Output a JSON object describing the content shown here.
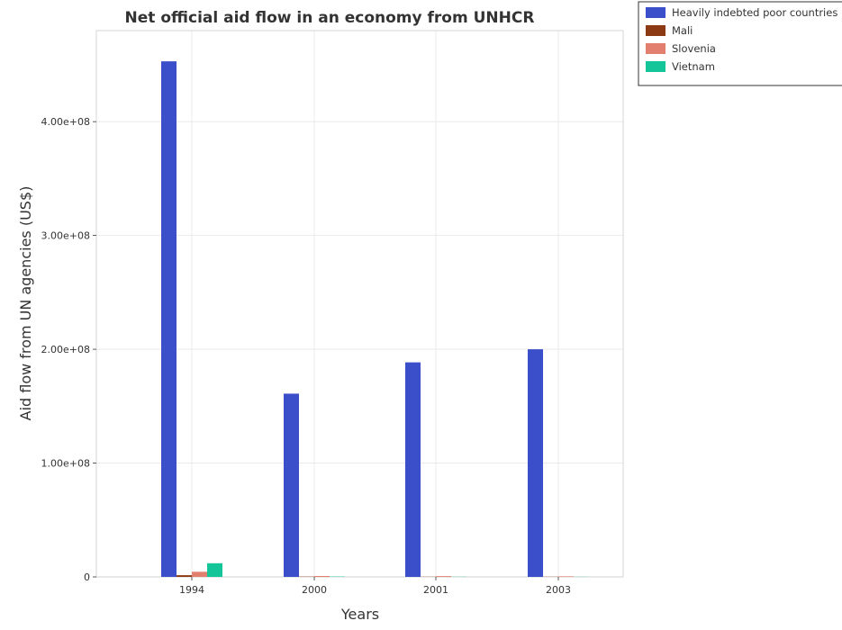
{
  "chart_data": {
    "type": "bar",
    "title": "Net official aid flow in an economy from UNHCR",
    "xlabel": "Years",
    "ylabel": "Aid flow from UN agencies (US$)",
    "categories": [
      "1994",
      "2000",
      "2001",
      "2003"
    ],
    "ylim": [
      0,
      480000000
    ],
    "yticks": [
      0,
      100000000,
      200000000,
      300000000,
      400000000
    ],
    "ytick_labels": [
      "0",
      "1.00e+08",
      "2.00e+08",
      "3.00e+08",
      "4.00e+08"
    ],
    "grid": true,
    "legend_position": "top-right",
    "series": [
      {
        "name": "Heavily indebted poor countries",
        "color": "#3a4fc9",
        "values": [
          453000000,
          161000000,
          188500000,
          200000000
        ]
      },
      {
        "name": "Mali",
        "color": "#8b3a13",
        "values": [
          1500000,
          250000,
          150000,
          150000
        ]
      },
      {
        "name": "Slovenia",
        "color": "#e27f6f",
        "values": [
          4500000,
          800000,
          700000,
          500000
        ]
      },
      {
        "name": "Vietnam",
        "color": "#15c59a",
        "values": [
          12000000,
          300000,
          150000,
          100000
        ]
      }
    ]
  }
}
